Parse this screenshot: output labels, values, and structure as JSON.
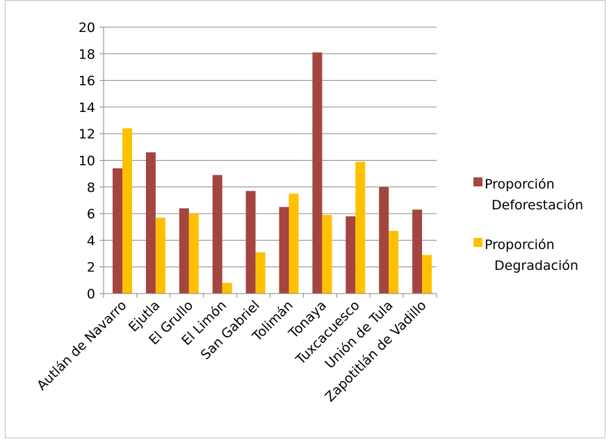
{
  "chart_data": {
    "type": "bar",
    "title": "",
    "xlabel": "",
    "ylabel": "",
    "ylim": [
      0,
      20
    ],
    "ytick_step": 2,
    "grid": true,
    "legend_position": "right",
    "categories": [
      "Autlán de Navarro",
      "Ejutla",
      "El Grullo",
      "El Limón",
      "San Gabriel",
      "Tolimán",
      "Tonaya",
      "Tuxcacuesco",
      "Unión de Tula",
      "Zapotitlán de Vadillo"
    ],
    "series": [
      {
        "name": "Proporción Deforestación",
        "legend_lines": [
          "Proporción",
          "Deforestación"
        ],
        "color": "#a5453f",
        "values": [
          9.4,
          10.6,
          6.4,
          8.9,
          7.7,
          6.5,
          18.1,
          5.8,
          8.0,
          6.3
        ]
      },
      {
        "name": "Proporción Degradación",
        "legend_lines": [
          "Proporción",
          "Degradación"
        ],
        "color": "#ffc000",
        "values": [
          12.4,
          5.7,
          6.0,
          0.8,
          3.1,
          7.5,
          5.9,
          9.9,
          4.7,
          2.9
        ]
      }
    ]
  }
}
